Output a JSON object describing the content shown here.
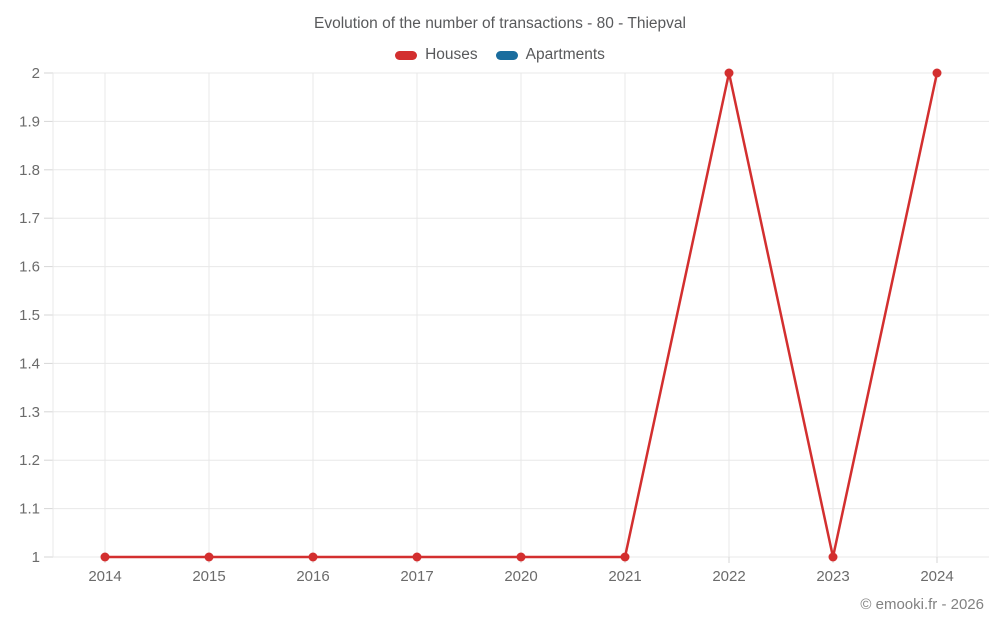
{
  "title": "Evolution of the number of transactions - 80 - Thiepval",
  "footer": "© emooki.fr - 2026",
  "colors": {
    "houses": "#d32f2f",
    "apartments": "#1a6d9e",
    "gridline": "#e8e8e8",
    "axis": "#d6d6d6",
    "text": "#58595b",
    "axis_text": "#6b6b6b"
  },
  "chart_data": {
    "type": "line",
    "title": "Evolution of the number of transactions - 80 - Thiepval",
    "categories": [
      "2014",
      "2015",
      "2016",
      "2017",
      "2020",
      "2021",
      "2022",
      "2023",
      "2024"
    ],
    "series": [
      {
        "name": "Houses",
        "color": "#d32f2f",
        "values": [
          1,
          1,
          1,
          1,
          1,
          1,
          2,
          1,
          2
        ]
      },
      {
        "name": "Apartments",
        "color": "#1a6d9e",
        "values": []
      }
    ],
    "xlabel": "",
    "ylabel": "",
    "ylim": [
      1,
      2
    ],
    "y_ticks": [
      "1",
      "1.1",
      "1.2",
      "1.3",
      "1.4",
      "1.5",
      "1.6",
      "1.7",
      "1.8",
      "1.9",
      "2"
    ],
    "grid": true,
    "legend_position": "top"
  }
}
